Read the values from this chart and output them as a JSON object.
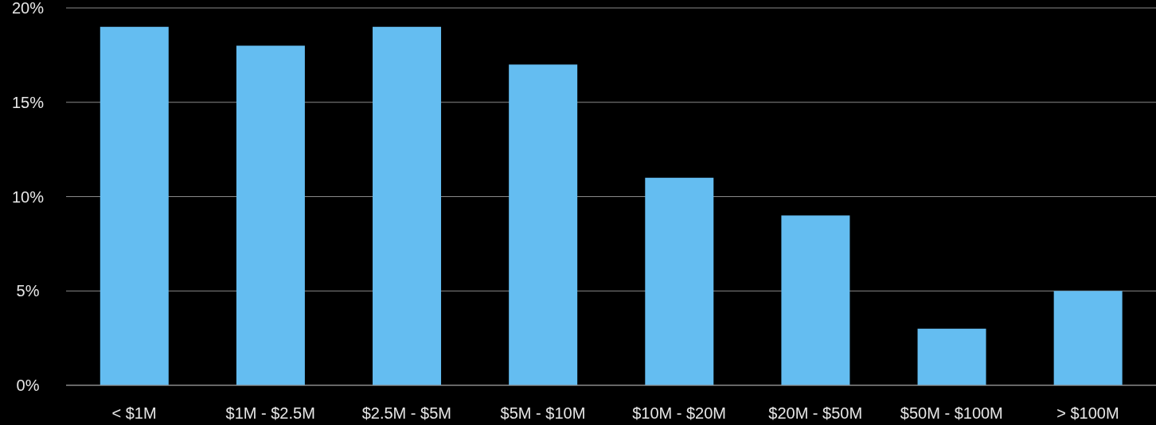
{
  "chart_data": {
    "type": "bar",
    "categories": [
      "< $1M",
      "$1M - $2.5M",
      "$2.5M - $5M",
      "$5M - $10M",
      "$10M - $20M",
      "$20M - $50M",
      "$50M - $100M",
      "> $100M"
    ],
    "values": [
      19,
      18,
      19,
      17,
      11,
      9,
      3,
      5
    ],
    "color": "#64bdf1",
    "ylim": [
      0,
      20
    ],
    "yticks": [
      {
        "value": 0,
        "label": "0%"
      },
      {
        "value": 5,
        "label": "5%"
      },
      {
        "value": 10,
        "label": "10%"
      },
      {
        "value": 15,
        "label": "15%"
      },
      {
        "value": 20,
        "label": "20%"
      }
    ],
    "grid": "y",
    "legend": false
  }
}
